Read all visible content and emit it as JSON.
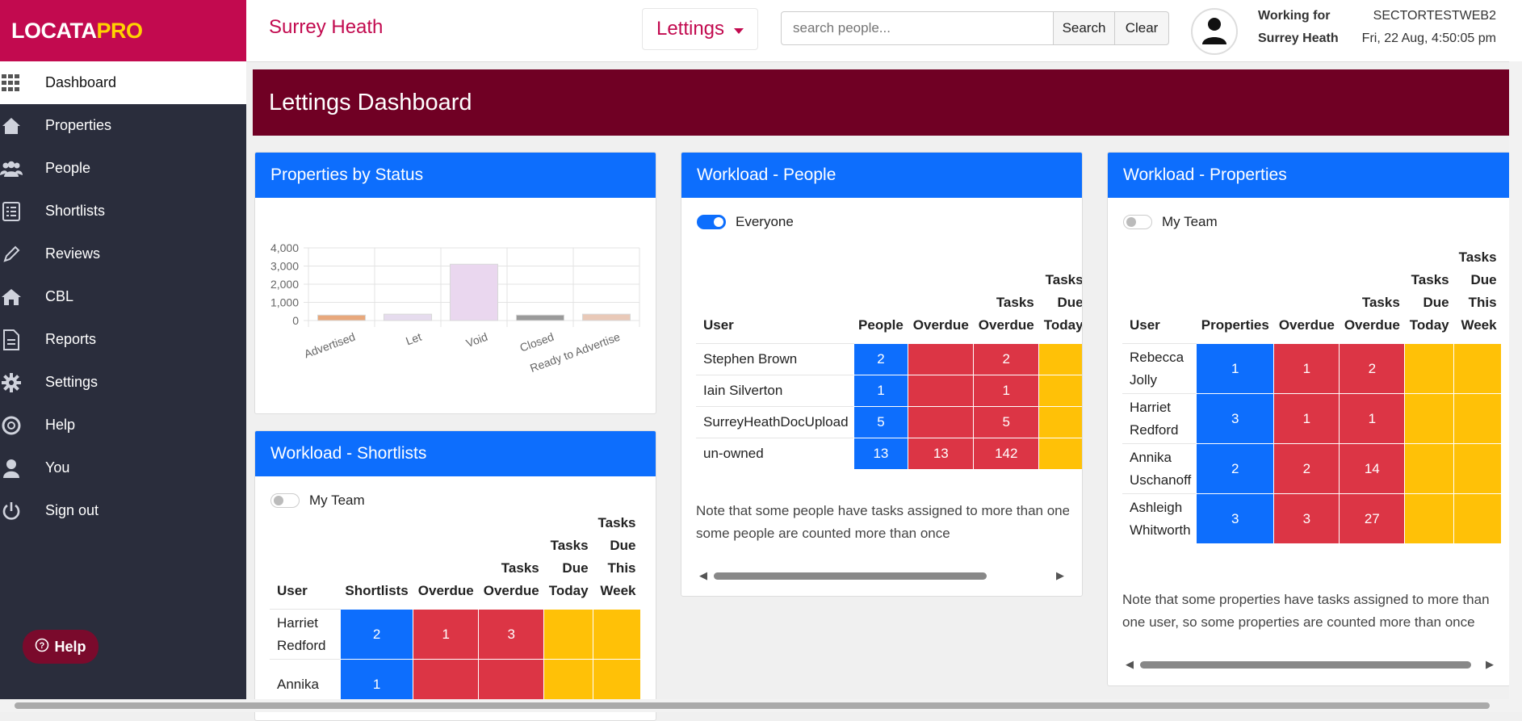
{
  "brand": {
    "loc": "LOCATA",
    "pro": "PRO"
  },
  "sidebar": {
    "items": [
      {
        "label": "Dashboard",
        "icon": "grid-icon"
      },
      {
        "label": "Properties",
        "icon": "house-icon"
      },
      {
        "label": "People",
        "icon": "people-icon"
      },
      {
        "label": "Shortlists",
        "icon": "list-icon"
      },
      {
        "label": "Reviews",
        "icon": "pencil-icon"
      },
      {
        "label": "CBL",
        "icon": "home-icon"
      },
      {
        "label": "Reports",
        "icon": "document-icon"
      },
      {
        "label": "Settings",
        "icon": "gear-icon"
      },
      {
        "label": "Help",
        "icon": "lifebuoy-icon"
      },
      {
        "label": "You",
        "icon": "user-icon"
      },
      {
        "label": "Sign out",
        "icon": "power-icon"
      }
    ],
    "help_fab": "Help"
  },
  "topbar": {
    "org": "Surrey Heath",
    "module": "Lettings",
    "search_placeholder": "search people...",
    "search_label": "Search",
    "clear_label": "Clear",
    "working_for_line1": "Working for",
    "working_for_line2": "Surrey Heath",
    "tenant_code": "SECTORTESTWEB2",
    "datetime": "Fri, 22 Aug, 4:50:05 pm"
  },
  "banner": {
    "title": "Lettings Dashboard"
  },
  "status_card": {
    "title": "Properties by Status"
  },
  "chart_data": {
    "type": "bar",
    "categories": [
      "Advertised",
      "Let",
      "Void",
      "Closed",
      "Ready to Advertise"
    ],
    "values": [
      300,
      350,
      3100,
      300,
      350
    ],
    "colors": [
      "#e8a87c",
      "#e6dcee",
      "#ead7ef",
      "#9a9a9a",
      "#e9c9b8"
    ],
    "yticks": [
      "4,000",
      "3,000",
      "2,000",
      "1,000",
      "0"
    ],
    "ylim": [
      0,
      4000
    ]
  },
  "shortlists_card": {
    "title": "Workload - Shortlists",
    "toggle_label": "My Team",
    "headers": [
      "User",
      "Shortlists",
      "Overdue",
      "Tasks Overdue",
      "Tasks Due Today",
      "Tasks Due This Week"
    ],
    "rows": [
      {
        "user": "Harriet Redford",
        "count": "2",
        "overdue": "1",
        "tasks_overdue": "3"
      },
      {
        "user": "Annika",
        "count": "1",
        "overdue": "",
        "tasks_overdue": ""
      }
    ]
  },
  "people_card": {
    "title": "Workload - People",
    "toggle_label": "Everyone",
    "headers": [
      "User",
      "People",
      "Overdue",
      "Tasks Overdue",
      "Tasks Due Today"
    ],
    "rows": [
      {
        "user": "Stephen Brown",
        "count": "2",
        "overdue": "",
        "tasks_overdue": "2"
      },
      {
        "user": "Iain Silverton",
        "count": "1",
        "overdue": "",
        "tasks_overdue": "1"
      },
      {
        "user": "SurreyHeathDocUpload",
        "count": "5",
        "overdue": "",
        "tasks_overdue": "5"
      },
      {
        "user": "un-owned",
        "count": "13",
        "overdue": "13",
        "tasks_overdue": "142"
      }
    ],
    "note_line1": "Note that some people have tasks assigned to more than one us",
    "note_line2": "some people are counted more than once"
  },
  "properties_card": {
    "title": "Workload - Properties",
    "toggle_label": "My Team",
    "headers": [
      "User",
      "Properties",
      "Overdue",
      "Tasks Overdue",
      "Tasks Due Today",
      "Tasks Due This Week"
    ],
    "rows": [
      {
        "user": "Rebecca Jolly",
        "count": "1",
        "overdue": "1",
        "tasks_overdue": "2"
      },
      {
        "user": "Harriet Redford",
        "count": "3",
        "overdue": "1",
        "tasks_overdue": "1"
      },
      {
        "user": "Annika Uschanoff",
        "count": "2",
        "overdue": "2",
        "tasks_overdue": "14"
      },
      {
        "user": "Ashleigh Whitworth",
        "count": "3",
        "overdue": "3",
        "tasks_overdue": "27"
      }
    ],
    "note_line1": "Note that some properties have tasks assigned to more than",
    "note_line2": "one user, so some properties are counted more than once"
  }
}
